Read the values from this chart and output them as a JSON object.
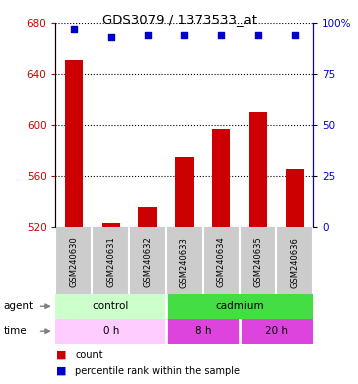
{
  "title": "GDS3079 / 1373533_at",
  "samples": [
    "GSM240630",
    "GSM240631",
    "GSM240632",
    "GSM240633",
    "GSM240634",
    "GSM240635",
    "GSM240636"
  ],
  "counts": [
    651,
    523,
    535,
    575,
    597,
    610,
    565
  ],
  "percentile_ranks": [
    97,
    93,
    94,
    94,
    94,
    94,
    94
  ],
  "ylim_left": [
    520,
    680
  ],
  "ylim_right": [
    0,
    100
  ],
  "yticks_left": [
    520,
    560,
    600,
    640,
    680
  ],
  "yticks_right": [
    0,
    25,
    50,
    75,
    100
  ],
  "bar_color": "#cc0000",
  "dot_color": "#0000cc",
  "agent_groups": [
    {
      "label": "control",
      "span": [
        0,
        3
      ],
      "color_light": "#ccffcc",
      "color_dark": "#ccffcc"
    },
    {
      "label": "cadmium",
      "span": [
        3,
        7
      ],
      "color_light": "#44dd44",
      "color_dark": "#44dd44"
    }
  ],
  "time_groups": [
    {
      "label": "0 h",
      "span": [
        0,
        3
      ],
      "color": "#ffccff"
    },
    {
      "label": "8 h",
      "span": [
        3,
        5
      ],
      "color": "#ee66ee"
    },
    {
      "label": "20 h",
      "span": [
        5,
        7
      ],
      "color": "#ee66ee"
    }
  ],
  "legend_count_color": "#cc0000",
  "legend_dot_color": "#0000cc",
  "tick_label_color_left": "#cc0000",
  "tick_label_color_right": "#0000cc",
  "sample_bg_color": "#cccccc",
  "sample_divider_color": "#ffffff"
}
